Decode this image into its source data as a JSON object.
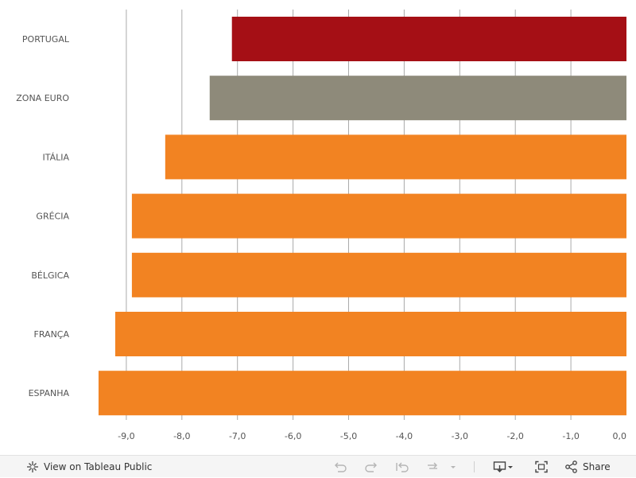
{
  "chart_data": {
    "type": "bar",
    "orientation": "horizontal",
    "categories": [
      "PORTUGAL",
      "ZONA EURO",
      "ITÁLIA",
      "GRÉCIA",
      "BÉLGICA",
      "FRANÇA",
      "ESPANHA"
    ],
    "values": [
      -7.1,
      -7.5,
      -8.3,
      -8.9,
      -8.9,
      -9.2,
      -9.5
    ],
    "bar_colors": [
      "#a50f15",
      "#8e8a7a",
      "#f28322",
      "#f28322",
      "#f28322",
      "#f28322",
      "#f28322"
    ],
    "xlim": [
      -9.5,
      0
    ],
    "xticks": [
      -9,
      -8,
      -7,
      -6,
      -5,
      -4,
      -3,
      -2,
      -1,
      0
    ],
    "xtick_labels": [
      "-9,0",
      "-8,0",
      "-7,0",
      "-6,0",
      "-5,0",
      "-4,0",
      "-3,0",
      "-2,0",
      "-1,0",
      "0,0"
    ],
    "grid": true,
    "title": "",
    "xlabel": "",
    "ylabel": ""
  },
  "toolbar": {
    "view_label": "View on Tableau Public",
    "share_label": "Share",
    "icons": [
      "tableau-icon",
      "undo-icon",
      "redo-icon",
      "revert-icon",
      "refresh-icon",
      "dropdown-icon",
      "download-icon",
      "fullscreen-icon",
      "share-icon"
    ]
  }
}
